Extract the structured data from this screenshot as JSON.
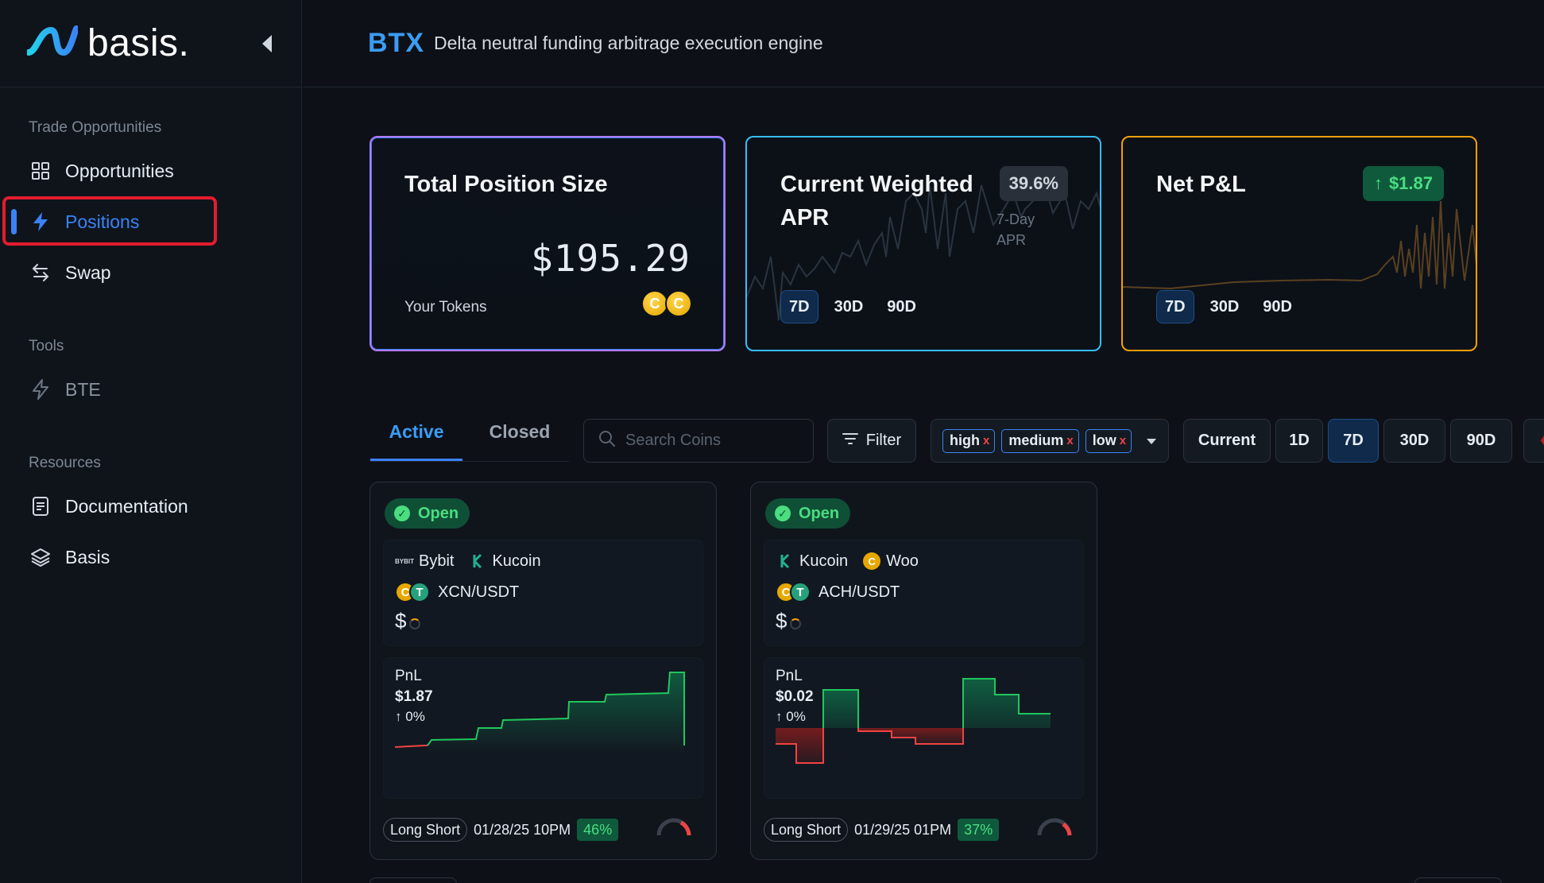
{
  "app": {
    "logo_text": "basis."
  },
  "sidebar": {
    "sections": [
      {
        "title": "Trade Opportunities"
      },
      {
        "title": "Tools"
      },
      {
        "title": "Resources"
      }
    ],
    "items": [
      {
        "label": "Opportunities",
        "icon": "grid-icon"
      },
      {
        "label": "Positions",
        "icon": "lightning-icon",
        "active": true
      },
      {
        "label": "Swap",
        "icon": "swap-arrows-icon"
      },
      {
        "label": "BTE",
        "icon": "lightning-outline-icon"
      },
      {
        "label": "Documentation",
        "icon": "document-icon"
      },
      {
        "label": "Basis",
        "icon": "layers-icon"
      }
    ]
  },
  "header": {
    "brand": "BTX",
    "tagline": "Delta neutral funding arbitrage execution engine"
  },
  "stats": {
    "total_position": {
      "title": "Total Position Size",
      "value": "$195.29",
      "tokens_label": "Your Tokens"
    },
    "weighted_apr": {
      "title_line1": "Current Weighted",
      "title_line2": "APR",
      "badge": "39.6%",
      "sub_line1": "7-Day",
      "sub_line2": "APR",
      "ranges": [
        "7D",
        "30D",
        "90D"
      ],
      "selected_range": "7D"
    },
    "net_pnl": {
      "title": "Net P&L",
      "badge": "$1.87",
      "ranges": [
        "7D",
        "30D",
        "90D"
      ],
      "selected_range": "7D"
    }
  },
  "toolbar": {
    "tabs": {
      "active": "Active",
      "closed": "Closed"
    },
    "search_placeholder": "Search Coins",
    "filter_label": "Filter",
    "risk_chips": [
      "high",
      "medium",
      "low"
    ],
    "chip_remove": "x",
    "periods": [
      "Current",
      "1D",
      "7D",
      "30D",
      "90D"
    ],
    "selected_period": "7D"
  },
  "positions": [
    {
      "status": "Open",
      "exchange_a": "Bybit",
      "exchange_b": "Kucoin",
      "pair": "XCN/USDT",
      "amount_prefix": "$",
      "pnl_label": "PnL",
      "pnl_value": "$1.87",
      "pnl_pct": "0%",
      "strategy": "Long Short",
      "opened": "01/28/25 10PM",
      "pct": "46%"
    },
    {
      "status": "Open",
      "exchange_a": "Kucoin",
      "exchange_b": "Woo",
      "pair": "ACH/USDT",
      "amount_prefix": "$",
      "pnl_label": "PnL",
      "pnl_value": "$0.02",
      "pnl_pct": "0%",
      "strategy": "Long Short",
      "opened": "01/29/25 01PM",
      "pct": "37%"
    }
  ],
  "colors": {
    "accent": "#3b82f6",
    "positive": "#4ade80",
    "negative": "#ef4444",
    "highlight": "#e11d2e"
  }
}
